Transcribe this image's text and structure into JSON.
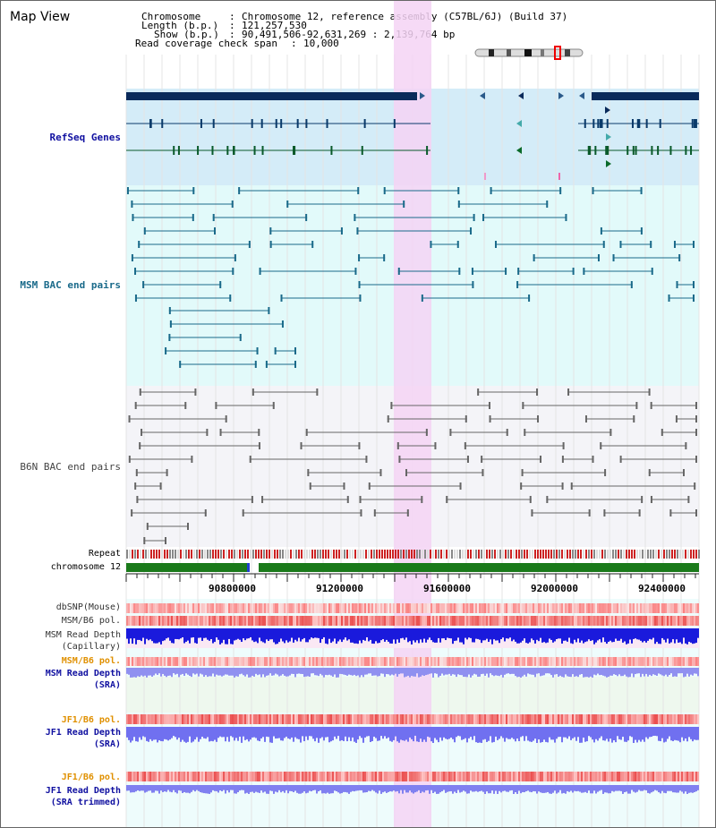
{
  "view_title": "Map View",
  "info": {
    "chromosome_label": "Chromosome",
    "chromosome_value": "Chromosome 12, reference assembly (C57BL/6J) (Build 37)",
    "length_label": "Length (b.p.)",
    "length_value": "121,257,530",
    "show_label": "Show (b.p.)",
    "show_value": "90,491,506-92,631,269 : 2,139,764 bp",
    "coverage_label": "Read coverage check span",
    "coverage_value": "10,000"
  },
  "tracks": {
    "refseq": "RefSeq Genes",
    "msm_bac": "MSM BAC end pairs",
    "b6n_bac": "B6N BAC end pairs",
    "repeat": "Repeat",
    "chromosome": "chromosome 12",
    "dbsnp": "dbSNP(Mouse)",
    "msm_b6_pol": "MSM/B6 pol.",
    "msm_depth_cap_1": "MSM Read Depth",
    "msm_depth_cap_2": "(Capillary)",
    "msm_b6_pol2": "MSM/B6 pol.",
    "msm_depth_sra_1": "MSM Read Depth",
    "msm_depth_sra_2": "(SRA)",
    "jf1_b6_pol": "JF1/B6 pol.",
    "jf1_depth_1": "JF1 Read Depth",
    "jf1_depth_2": "(SRA)",
    "jf1_b6_pol2": "JF1/B6 pol.",
    "jf1_trim_1": "JF1 Read Depth",
    "jf1_trim_2": "(SRA trimmed)"
  },
  "axis_ticks": [
    "90800000",
    "91200000",
    "91600000",
    "92000000",
    "92400000"
  ],
  "colors": {
    "refseq_dark": "#0a2a5a",
    "refseq_band": "#d4ecf8",
    "msm_band": "#e2fafa",
    "b6n_band": "#f4f4f8",
    "highlight": "#f4d4f4",
    "chrom_green": "#1a7a1a",
    "msm_line": "#1a6a8a",
    "b6n_line": "#555555",
    "depth_blue": "#1a1adc",
    "pol_red": "#f04040",
    "label_blue": "#1010a0",
    "label_orange": "#e09000"
  }
}
